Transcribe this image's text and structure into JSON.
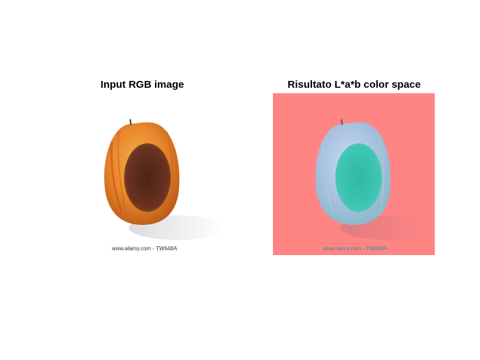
{
  "panels": {
    "left": {
      "title": "Input RGB image",
      "watermark": "www.alamy.com - TW648A"
    },
    "right": {
      "title": "Risultato L*a*b color space",
      "watermark": "www.aamy.com - TW648A"
    }
  },
  "colors": {
    "right_background": "#ff8585",
    "apple_skin_orange": "#e8872a",
    "apple_rot_brown": "#5a2a18",
    "lab_skin": "#a8c8e6",
    "lab_rot": "#3cc4b0"
  }
}
